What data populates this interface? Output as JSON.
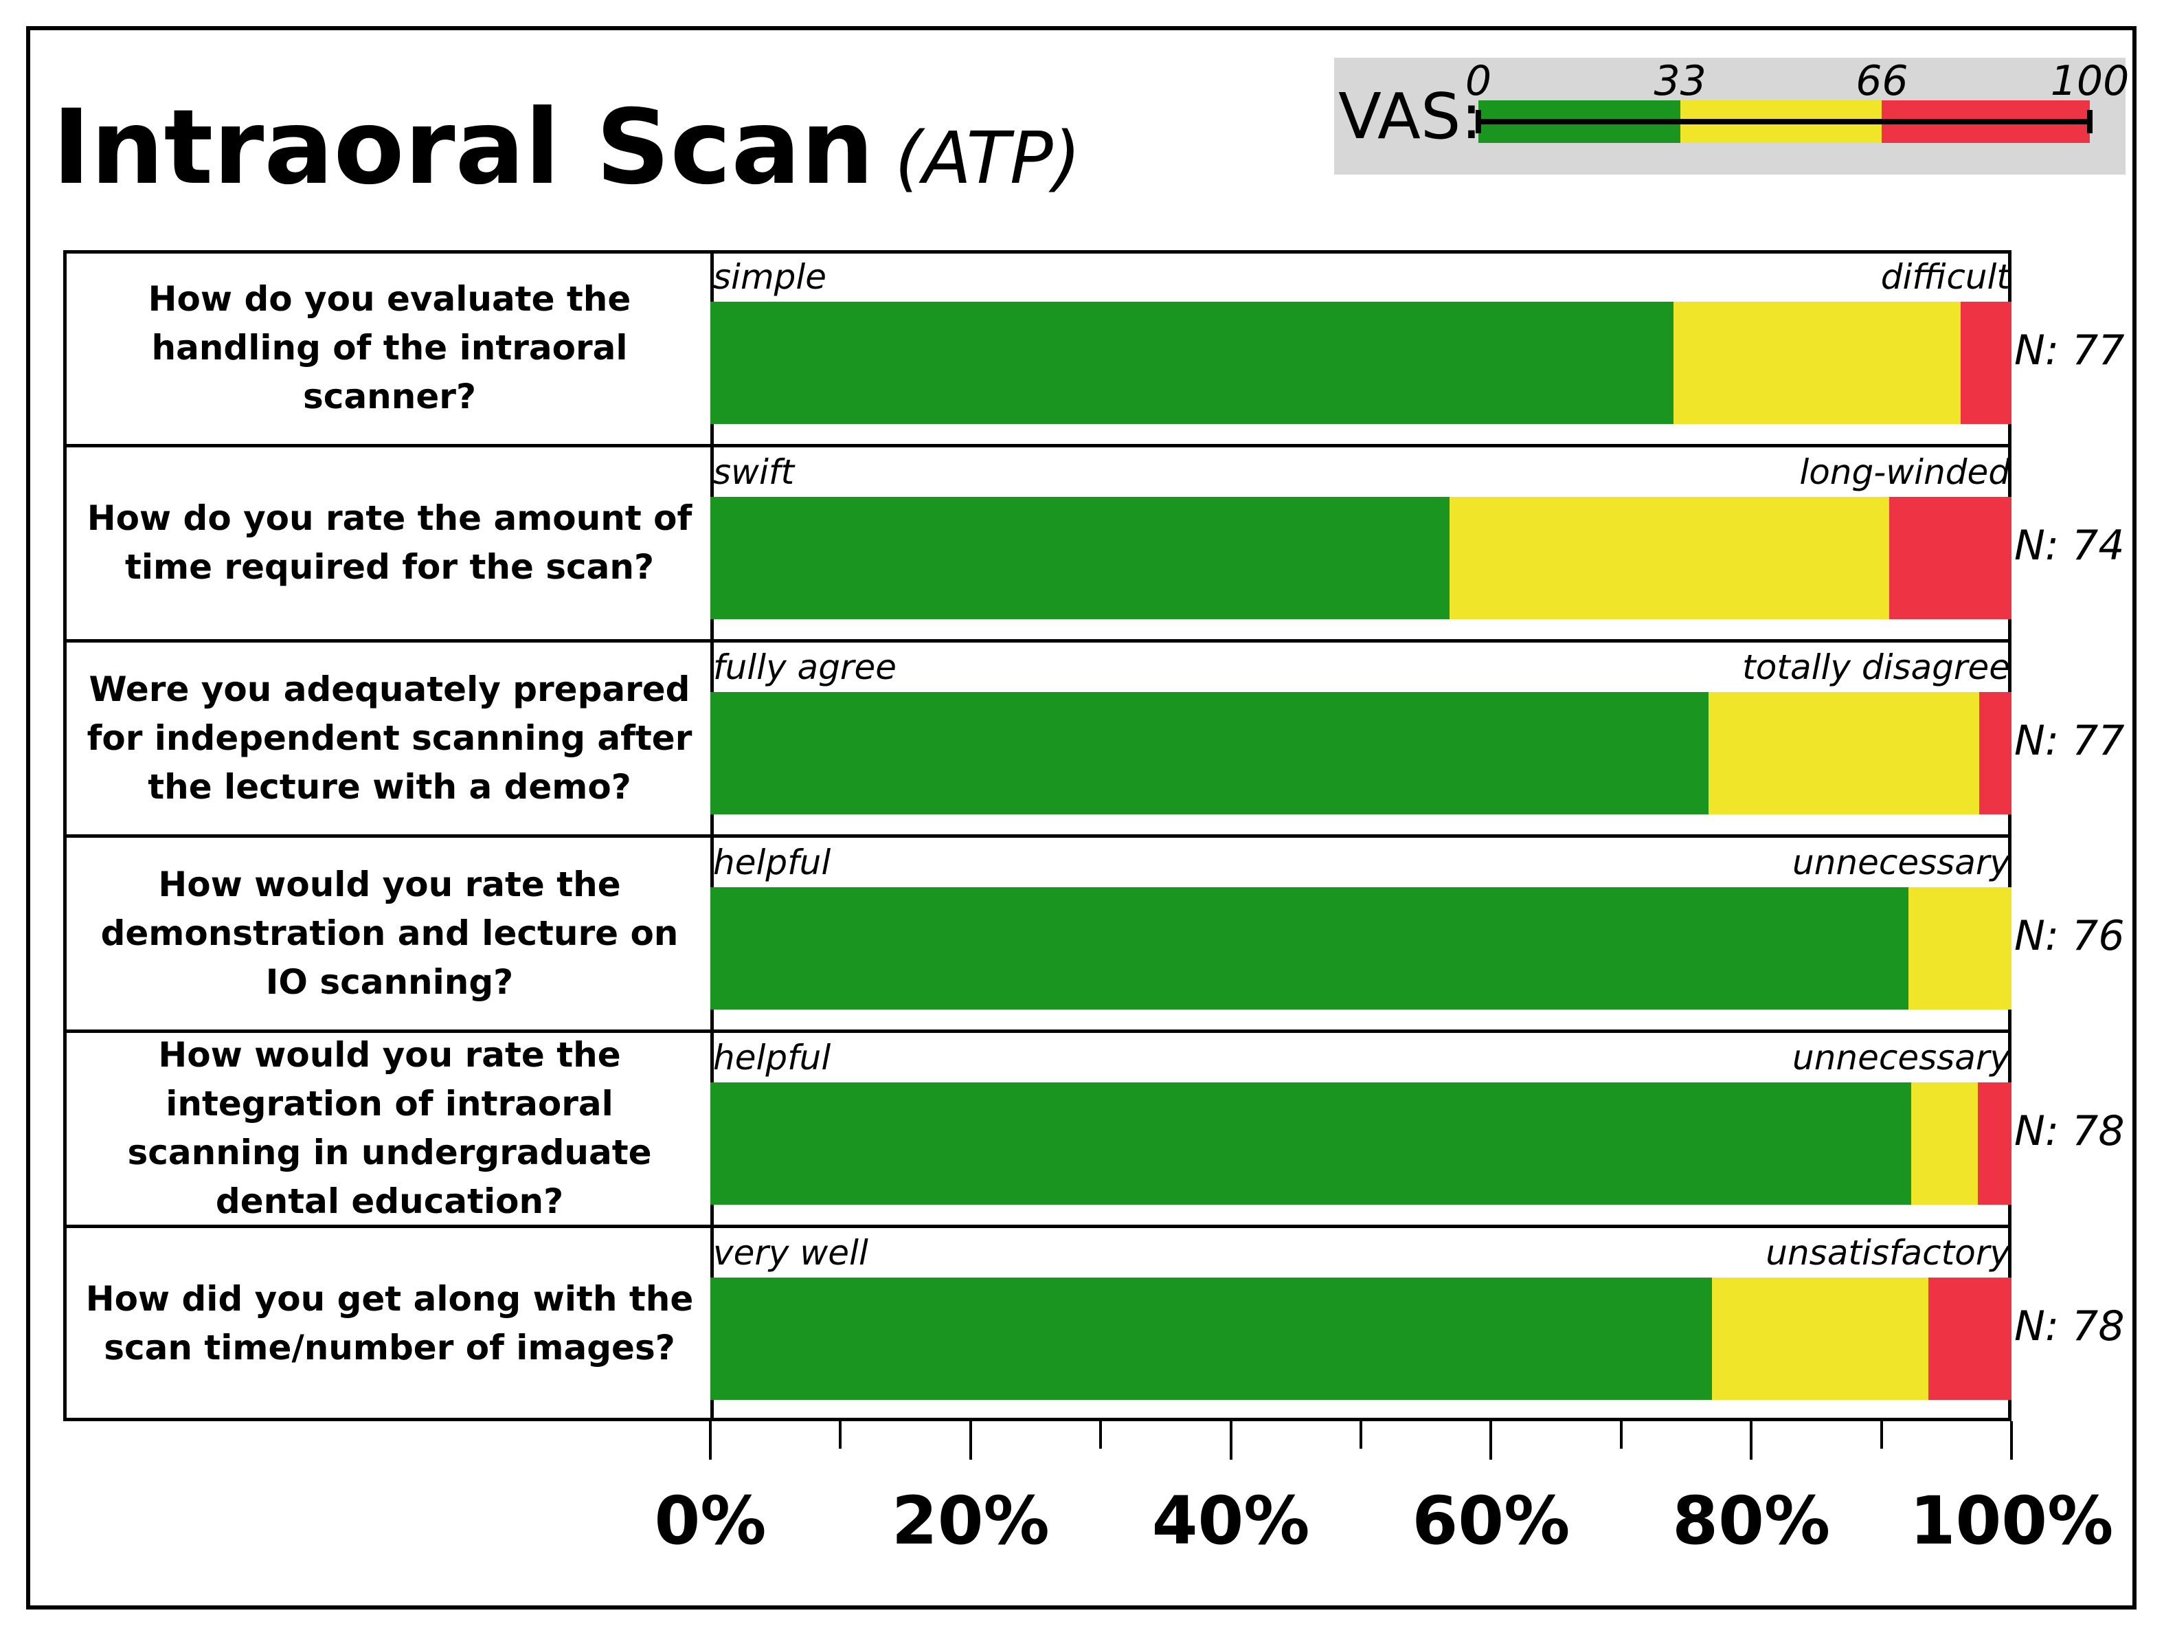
{
  "title": "Intraoral Scan",
  "subtitle": "(ATP)",
  "legend": {
    "label": "VAS:",
    "ticks": [
      "0",
      "33",
      "66",
      "100"
    ],
    "tick_values": [
      0,
      33,
      66,
      100
    ],
    "bands": [
      {
        "from": 0,
        "to": 33,
        "color": "#1a9620"
      },
      {
        "from": 33,
        "to": 66,
        "color": "#f0e528"
      },
      {
        "from": 66,
        "to": 100,
        "color": "#ee3344"
      }
    ]
  },
  "chart_data": {
    "type": "bar",
    "orientation": "horizontal",
    "stacked": true,
    "xlim": [
      0,
      100
    ],
    "tick_values": [
      0,
      10,
      20,
      30,
      40,
      50,
      60,
      70,
      80,
      90,
      100
    ],
    "tick_labels": [
      "0%",
      "",
      "20%",
      "",
      "40%",
      "",
      "60%",
      "",
      "80%",
      "",
      "100%"
    ],
    "categories": [
      "How do you evaluate the handling of the intraoral scanner?",
      "How do you rate the amount of time required for the scan?",
      "Were you adequately prepared for independent scanning after the lecture with a demo?",
      "How would you rate the demonstration and lecture on IO scanning?",
      "How would you rate the integration of intraoral scanning in undergraduate dental education?",
      "How did you get along with the scan time/number of images?"
    ],
    "left_anchors": [
      "simple",
      "swift",
      "fully agree",
      "helpful",
      "helpful",
      "very well"
    ],
    "right_anchors": [
      "difficult",
      "long-winded",
      "totally disagree",
      "unnecessary",
      "unnecessary",
      "unsatisfactory"
    ],
    "n_labels": [
      "N: 77",
      "N: 74",
      "N: 77",
      "N: 76",
      "N: 78",
      "N: 78"
    ],
    "series_colors": [
      "#1a9620",
      "#f0e528",
      "#ee3344"
    ],
    "series": [
      {
        "values": [
          74.0,
          56.8,
          76.7,
          92.1,
          92.3,
          77.0
        ]
      },
      {
        "values": [
          22.1,
          33.8,
          20.8,
          7.9,
          5.1,
          16.6
        ]
      },
      {
        "values": [
          3.9,
          9.4,
          2.5,
          0,
          2.6,
          6.4
        ]
      }
    ]
  }
}
